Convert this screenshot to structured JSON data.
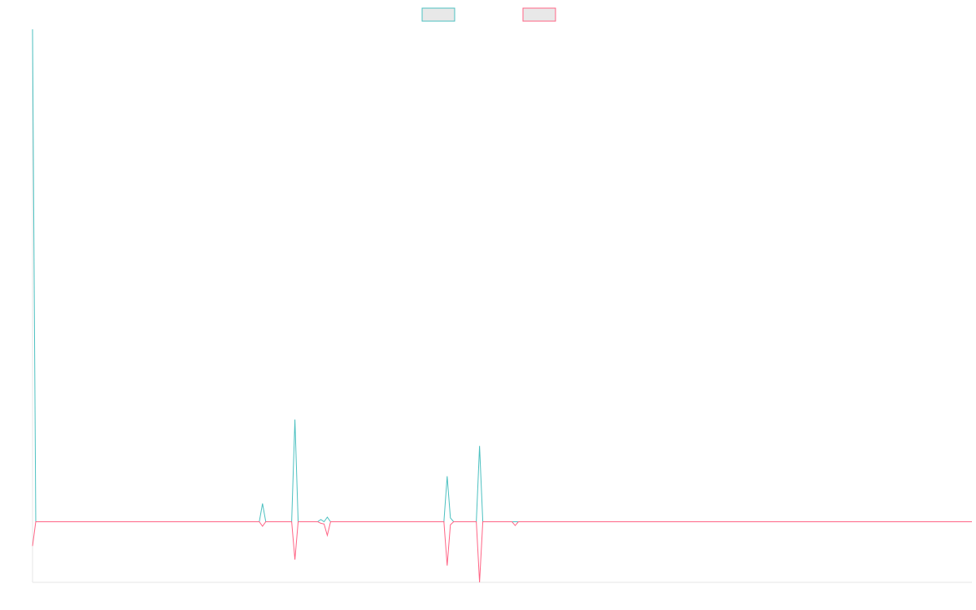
{
  "chart_data": {
    "type": "line",
    "title": "",
    "xlabel": "",
    "ylabel": "",
    "grid": false,
    "legend_position": "top-center",
    "ylim": [
      -8,
      65
    ],
    "x": [
      0,
      1,
      2,
      3,
      4,
      5,
      6,
      7,
      8,
      9,
      10,
      11,
      12,
      13,
      14,
      15,
      16,
      17,
      18,
      19,
      20,
      21,
      22,
      23,
      24,
      25,
      26,
      27,
      28,
      29,
      30,
      31,
      32,
      33,
      34,
      35,
      36,
      37,
      38,
      39,
      40,
      41,
      42,
      43,
      44,
      45,
      46,
      47,
      48,
      49,
      50,
      51,
      52,
      53,
      54,
      55,
      56,
      57,
      58,
      59,
      60,
      61,
      62,
      63,
      64,
      65,
      66,
      67,
      68,
      69,
      70,
      71,
      72,
      73,
      74,
      75,
      76,
      77,
      78,
      79,
      80,
      81,
      82,
      83,
      84,
      85,
      86,
      87,
      88,
      89,
      90,
      91,
      92,
      93,
      94,
      95,
      96,
      97,
      98,
      99,
      100,
      101,
      102,
      103,
      104,
      105,
      106,
      107,
      108,
      109,
      110,
      111,
      112,
      113,
      114,
      115,
      116,
      117,
      118,
      119,
      120,
      121,
      122,
      123,
      124,
      125,
      126,
      127,
      128,
      129,
      130,
      131,
      132,
      133,
      134,
      135,
      136,
      137,
      138,
      139,
      140,
      141,
      142,
      143,
      144,
      145,
      146,
      147,
      148,
      149,
      150,
      151,
      152,
      153,
      154,
      155,
      156,
      157,
      158,
      159,
      160,
      161,
      162,
      163,
      164,
      165,
      166,
      167,
      168,
      169,
      170,
      171,
      172,
      173,
      174,
      175,
      176,
      177,
      178,
      179,
      180,
      181,
      182,
      183,
      184,
      185,
      186,
      187,
      188,
      189,
      190,
      191,
      192,
      193,
      194,
      195,
      196,
      197,
      198,
      199,
      200,
      201,
      202,
      203,
      204,
      205,
      206,
      207,
      208,
      209,
      210,
      211,
      212,
      213,
      214,
      215,
      216,
      217,
      218,
      219,
      220,
      221,
      222,
      223,
      224,
      225,
      226,
      227,
      228,
      229,
      230,
      231,
      232,
      233,
      234,
      235,
      236,
      237,
      238,
      239,
      240,
      241,
      242,
      243,
      244,
      245,
      246,
      247,
      248,
      249,
      250,
      251,
      252,
      253,
      254,
      255,
      256,
      257,
      258,
      259,
      260,
      261,
      262,
      263,
      264,
      265,
      266,
      267,
      268,
      269,
      270,
      271,
      272,
      273,
      274,
      275,
      276,
      277,
      278,
      279,
      280,
      281,
      282,
      283,
      284,
      285,
      286,
      287,
      288,
      289,
      290
    ],
    "series": [
      {
        "name": "",
        "color": "#4bc0c0",
        "points": [
          [
            0,
            65
          ],
          [
            1,
            0
          ],
          [
            70,
            0
          ],
          [
            71,
            2.4
          ],
          [
            72,
            0
          ],
          [
            80,
            0
          ],
          [
            81,
            13.5
          ],
          [
            82,
            0
          ],
          [
            88,
            0
          ],
          [
            89,
            0.3
          ],
          [
            90,
            0
          ],
          [
            91,
            0.6
          ],
          [
            92,
            0
          ],
          [
            127,
            0
          ],
          [
            128,
            6
          ],
          [
            129,
            0.5
          ],
          [
            130,
            0
          ],
          [
            137,
            0
          ],
          [
            138,
            10
          ],
          [
            139,
            0
          ],
          [
            148,
            0
          ],
          [
            149,
            0
          ],
          [
            150,
            0
          ],
          [
            290,
            0
          ]
        ]
      },
      {
        "name": "",
        "color": "#ff6384",
        "points": [
          [
            0,
            -3.2
          ],
          [
            1,
            0
          ],
          [
            70,
            0
          ],
          [
            71,
            -0.6
          ],
          [
            72,
            0
          ],
          [
            80,
            0
          ],
          [
            81,
            -5
          ],
          [
            82,
            0
          ],
          [
            88,
            0
          ],
          [
            89,
            -0.2
          ],
          [
            90,
            -0.3
          ],
          [
            91,
            -1.8
          ],
          [
            92,
            0
          ],
          [
            127,
            0
          ],
          [
            128,
            -5.8
          ],
          [
            129,
            -0.4
          ],
          [
            130,
            0
          ],
          [
            137,
            0
          ],
          [
            138,
            -8
          ],
          [
            139,
            0
          ],
          [
            148,
            0
          ],
          [
            149,
            -0.5
          ],
          [
            150,
            0
          ],
          [
            290,
            0
          ]
        ]
      }
    ]
  }
}
